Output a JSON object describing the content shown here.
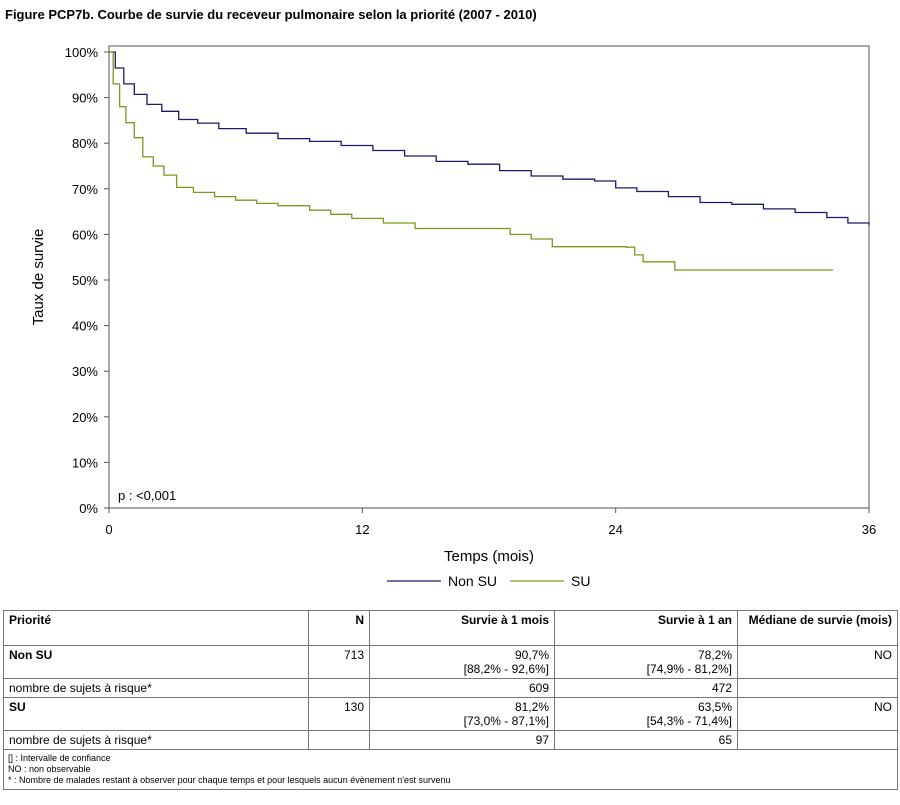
{
  "title": "Figure PCP7b. Courbe de survie du receveur pulmonaire selon la priorité (2007 - 2010)",
  "chart_data": {
    "type": "line",
    "xlabel": "Temps (mois)",
    "ylabel": "Taux de survie",
    "xlim": [
      0,
      36
    ],
    "ylim": [
      0,
      100
    ],
    "x_ticks": [
      "0",
      "12",
      "24",
      "36"
    ],
    "y_ticks": [
      "0%",
      "10%",
      "20%",
      "30%",
      "40%",
      "50%",
      "60%",
      "70%",
      "80%",
      "90%",
      "100%"
    ],
    "annotation": "p : <0,001",
    "legend_position": "bottom",
    "grid": false,
    "series": [
      {
        "name": "Non SU",
        "color": "#1a1a6e",
        "x": [
          0,
          0.3,
          0.7,
          1.2,
          1.8,
          2.5,
          3.3,
          4.2,
          5.2,
          6.5,
          8,
          9.5,
          11,
          12.5,
          14,
          15.5,
          17,
          18.5,
          20,
          21.5,
          23,
          24,
          25,
          26.5,
          28,
          29.5,
          31,
          32.5,
          34,
          35,
          36
        ],
        "y": [
          100,
          96.5,
          93,
          90.7,
          88.5,
          87,
          85.2,
          84.4,
          83.2,
          82.2,
          81,
          80.4,
          79.5,
          78.4,
          77.2,
          76,
          75.4,
          74,
          72.8,
          72.1,
          71.7,
          70.2,
          69.4,
          68.3,
          67,
          66.6,
          65.6,
          64.8,
          63.7,
          62.5,
          62
        ]
      },
      {
        "name": "SU",
        "color": "#7a9a1e",
        "x": [
          0,
          0.2,
          0.5,
          0.8,
          1.2,
          1.6,
          2.1,
          2.6,
          3.2,
          4,
          5,
          6,
          7,
          8,
          9.5,
          10.5,
          11.5,
          13,
          14.5,
          16,
          17.5,
          19,
          20,
          21,
          23,
          24.5,
          24.9,
          25.3,
          26,
          26.8,
          28,
          30,
          32,
          34.3
        ],
        "y": [
          100,
          93,
          88,
          84.5,
          81.2,
          77,
          75,
          73,
          70.3,
          69.2,
          68.3,
          67.5,
          66.8,
          66.3,
          65.3,
          64.4,
          63.5,
          62.5,
          61.3,
          61.3,
          61.3,
          60,
          59,
          57.3,
          57.3,
          57.2,
          55.5,
          54,
          54,
          52.2,
          52.2,
          52.2,
          52.2,
          52.2
        ]
      }
    ]
  },
  "table": {
    "headers": [
      "Priorité",
      "N",
      "Survie à 1 mois",
      "Survie à 1 an",
      "Médiane de survie (mois)"
    ],
    "rows": [
      {
        "label": "Non SU",
        "n": "713",
        "one_month": "90,7%",
        "one_month_ci": "[88,2% - 92,6%]",
        "one_year": "78,2%",
        "one_year_ci": "[74,9% - 81,2%]",
        "median": "NO"
      },
      {
        "label": "nombre de sujets à risque*",
        "at_risk_1m": "609",
        "at_risk_1y": "472"
      },
      {
        "label": "SU",
        "n": "130",
        "one_month": "81,2%",
        "one_month_ci": "[73,0% - 87,1%]",
        "one_year": "63,5%",
        "one_year_ci": "[54,3% - 71,4%]",
        "median": "NO"
      },
      {
        "label": "nombre de sujets à risque*",
        "at_risk_1m": "97",
        "at_risk_1y": "65"
      }
    ],
    "notes": [
      "[] : Intervalle de confiance",
      "NO : non observable",
      "* : Nombre de malades restant à observer pour chaque temps et pour lesquels aucun évènement n'est survenu"
    ]
  }
}
